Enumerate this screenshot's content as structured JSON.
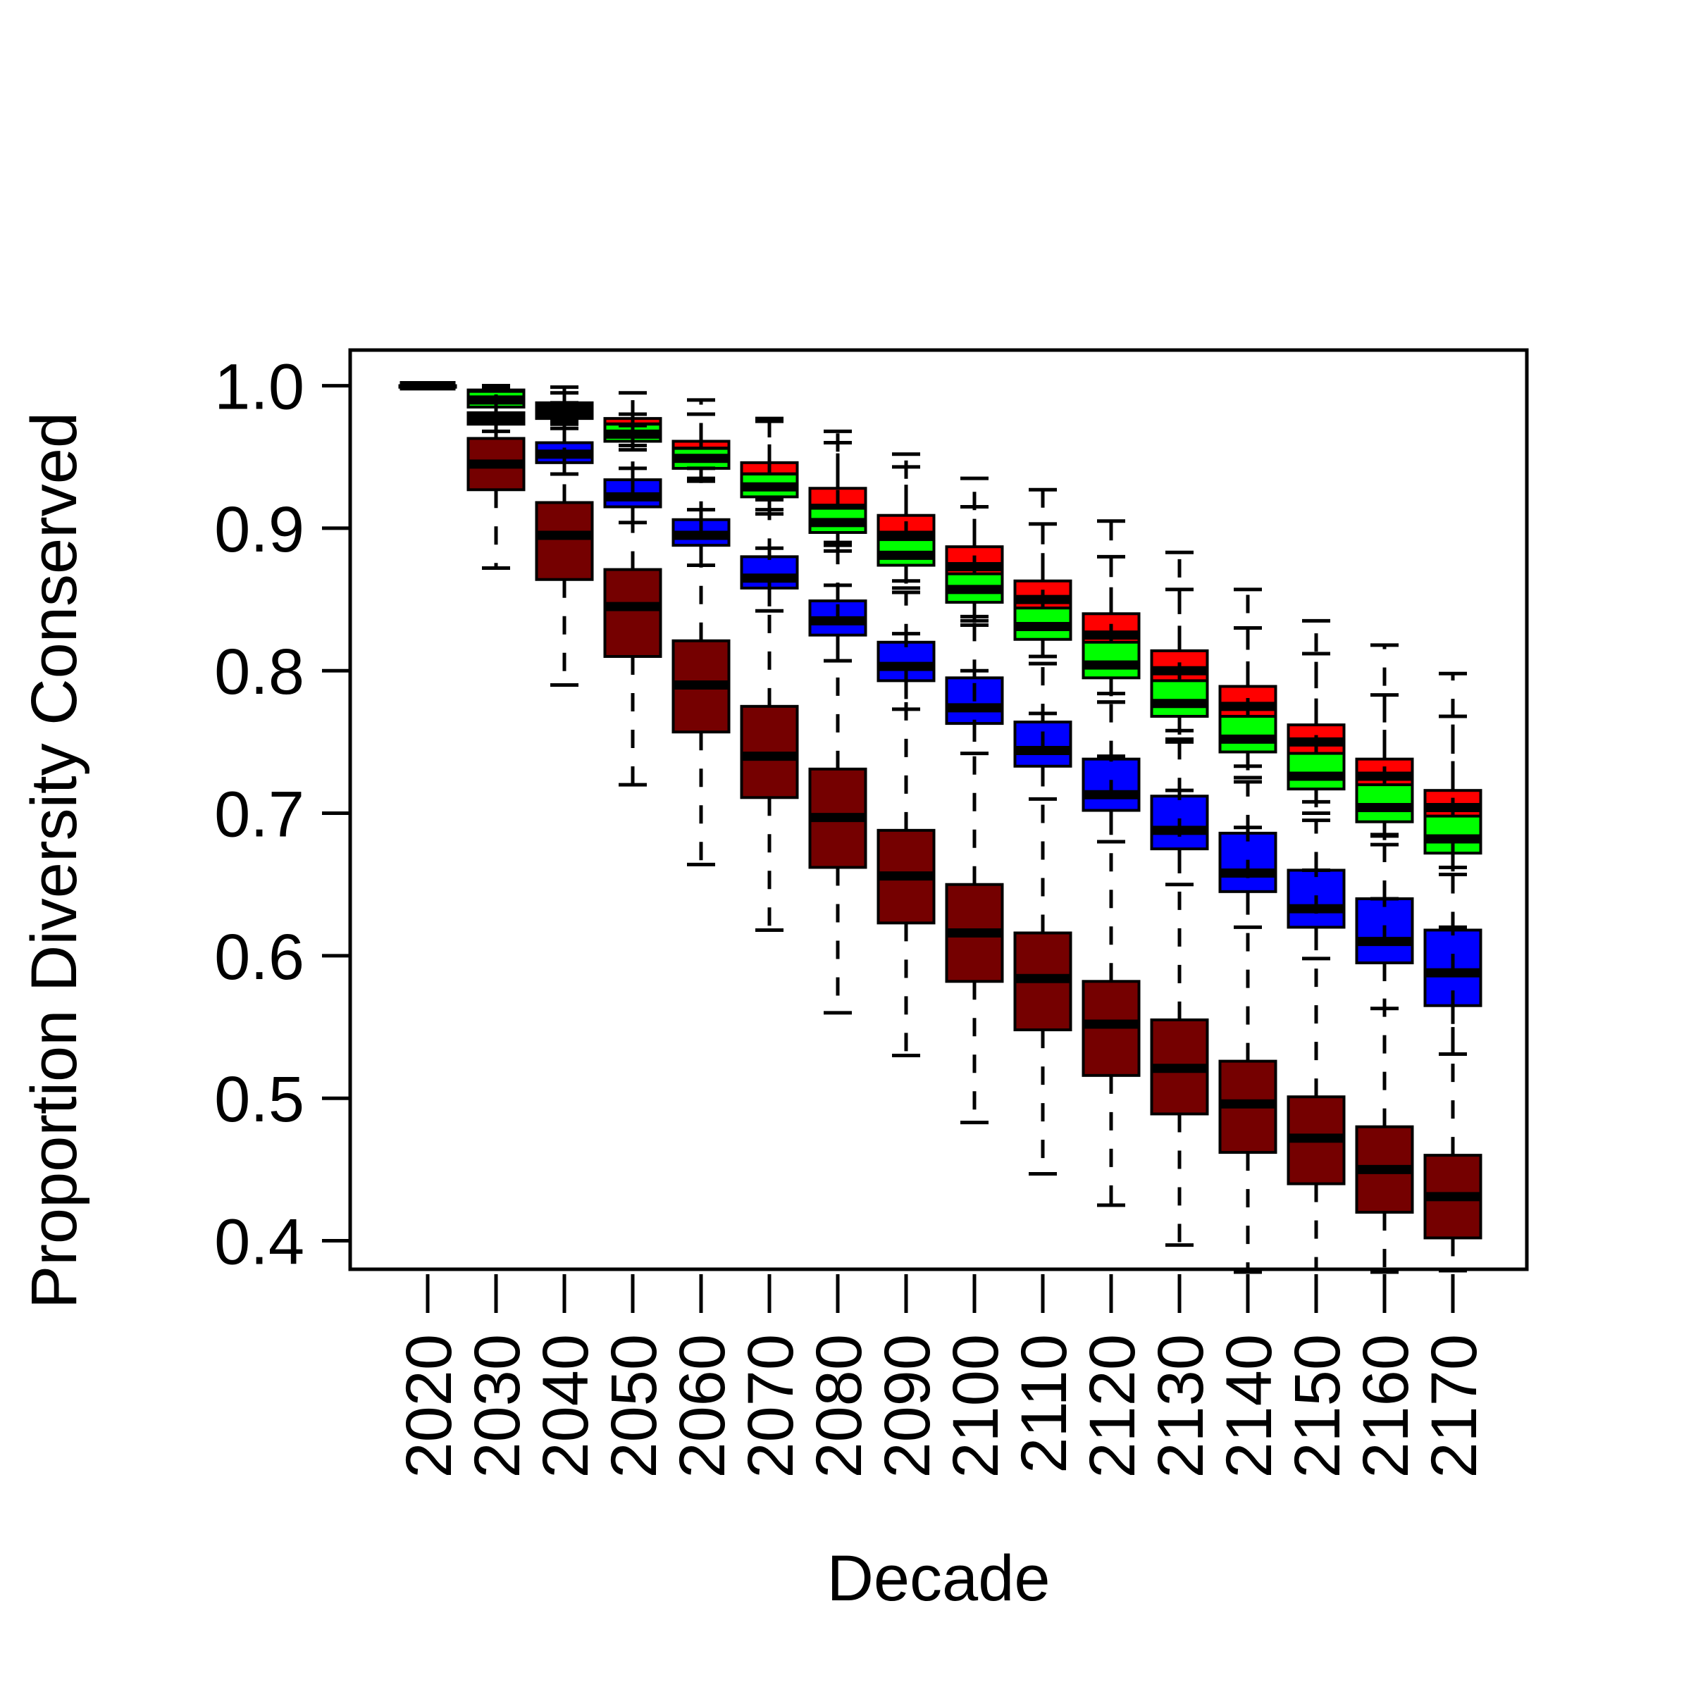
{
  "chart_data": {
    "type": "boxplot",
    "title": "",
    "xlabel": "Decade",
    "ylabel": "Proportion Diversity Conserved",
    "ylim": [
      0.38,
      1.025
    ],
    "yticks": [
      "0.4",
      "0.5",
      "0.6",
      "0.7",
      "0.8",
      "0.9",
      "1.0"
    ],
    "grid": false,
    "legend": "none",
    "categories": [
      "2020",
      "2030",
      "2040",
      "2050",
      "2060",
      "2070",
      "2080",
      "2090",
      "2100",
      "2110",
      "2120",
      "2130",
      "2140",
      "2150",
      "2160",
      "2170"
    ],
    "series": [
      {
        "color": "#ff0000",
        "boxes": [
          [
            1.0,
            1.0,
            1.0,
            1.0,
            1.0
          ],
          [
            0.975,
            0.987,
            0.993,
            0.997,
            1.0
          ],
          [
            0.975,
            0.979,
            0.984,
            0.988,
            0.999
          ],
          [
            0.958,
            0.966,
            0.971,
            0.977,
            0.995
          ],
          [
            0.935,
            0.947,
            0.954,
            0.961,
            0.99
          ],
          [
            0.913,
            0.929,
            0.936,
            0.946,
            0.977
          ],
          [
            0.888,
            0.905,
            0.914,
            0.928,
            0.968
          ],
          [
            0.863,
            0.884,
            0.895,
            0.909,
            0.952
          ],
          [
            0.838,
            0.86,
            0.873,
            0.887,
            0.935
          ],
          [
            0.81,
            0.836,
            0.85,
            0.863,
            0.927
          ],
          [
            0.784,
            0.81,
            0.825,
            0.84,
            0.905
          ],
          [
            0.758,
            0.786,
            0.8,
            0.814,
            0.883
          ],
          [
            0.733,
            0.76,
            0.775,
            0.789,
            0.857
          ],
          [
            0.708,
            0.736,
            0.75,
            0.762,
            0.835
          ],
          [
            0.684,
            0.711,
            0.726,
            0.738,
            0.818
          ],
          [
            0.662,
            0.69,
            0.704,
            0.716,
            0.798
          ]
        ]
      },
      {
        "color": "#00ff00",
        "boxes": [
          [
            1.0,
            1.0,
            1.0,
            1.0,
            1.0
          ],
          [
            0.974,
            0.985,
            0.99,
            0.996,
            1.0
          ],
          [
            0.973,
            0.977,
            0.981,
            0.985,
            0.995
          ],
          [
            0.955,
            0.961,
            0.966,
            0.973,
            0.98
          ],
          [
            0.933,
            0.942,
            0.949,
            0.956,
            0.98
          ],
          [
            0.91,
            0.922,
            0.929,
            0.938,
            0.975
          ],
          [
            0.884,
            0.897,
            0.904,
            0.914,
            0.96
          ],
          [
            0.858,
            0.874,
            0.881,
            0.892,
            0.943
          ],
          [
            0.832,
            0.848,
            0.857,
            0.868,
            0.915
          ],
          [
            0.805,
            0.822,
            0.831,
            0.844,
            0.903
          ],
          [
            0.778,
            0.795,
            0.804,
            0.82,
            0.88
          ],
          [
            0.752,
            0.768,
            0.777,
            0.793,
            0.857
          ],
          [
            0.725,
            0.743,
            0.752,
            0.768,
            0.83
          ],
          [
            0.7,
            0.717,
            0.726,
            0.742,
            0.812
          ],
          [
            0.678,
            0.694,
            0.704,
            0.72,
            0.783
          ],
          [
            0.657,
            0.672,
            0.682,
            0.698,
            0.768
          ]
        ]
      },
      {
        "color": "#0000ff",
        "boxes": [
          [
            1.0,
            1.0,
            1.0,
            1.0,
            1.0
          ],
          [
            0.968,
            0.973,
            0.977,
            0.981,
            0.998
          ],
          [
            0.938,
            0.946,
            0.952,
            0.96,
            0.988
          ],
          [
            0.904,
            0.915,
            0.922,
            0.934,
            0.972
          ],
          [
            0.874,
            0.888,
            0.895,
            0.906,
            0.942
          ],
          [
            0.842,
            0.858,
            0.865,
            0.88,
            0.92
          ],
          [
            0.807,
            0.825,
            0.835,
            0.849,
            0.89
          ],
          [
            0.773,
            0.793,
            0.803,
            0.82,
            0.855
          ],
          [
            0.742,
            0.763,
            0.774,
            0.795,
            0.835
          ],
          [
            0.71,
            0.733,
            0.744,
            0.764,
            0.805
          ],
          [
            0.68,
            0.702,
            0.713,
            0.738,
            0.778
          ],
          [
            0.65,
            0.675,
            0.688,
            0.712,
            0.75
          ],
          [
            0.62,
            0.645,
            0.658,
            0.686,
            0.722
          ],
          [
            0.598,
            0.62,
            0.633,
            0.66,
            0.695
          ],
          [
            0.563,
            0.595,
            0.61,
            0.64,
            0.685
          ],
          [
            0.531,
            0.565,
            0.588,
            0.618,
            0.68
          ]
        ]
      },
      {
        "color": "#750000",
        "boxes": [
          [
            1.0,
            1.0,
            1.0,
            1.0,
            1.0
          ],
          [
            0.872,
            0.927,
            0.945,
            0.963,
            0.99
          ],
          [
            0.79,
            0.864,
            0.895,
            0.918,
            0.97
          ],
          [
            0.72,
            0.81,
            0.845,
            0.871,
            0.942
          ],
          [
            0.664,
            0.757,
            0.79,
            0.821,
            0.913
          ],
          [
            0.618,
            0.711,
            0.74,
            0.775,
            0.886
          ],
          [
            0.56,
            0.662,
            0.697,
            0.731,
            0.86
          ],
          [
            0.53,
            0.623,
            0.656,
            0.688,
            0.826
          ],
          [
            0.483,
            0.582,
            0.616,
            0.65,
            0.8
          ],
          [
            0.447,
            0.548,
            0.584,
            0.616,
            0.77
          ],
          [
            0.425,
            0.516,
            0.552,
            0.582,
            0.74
          ],
          [
            0.397,
            0.489,
            0.521,
            0.555,
            0.716
          ],
          [
            0.378,
            0.462,
            0.496,
            0.526,
            0.69
          ],
          [
            0.38,
            0.44,
            0.472,
            0.501,
            0.66
          ],
          [
            0.378,
            0.42,
            0.45,
            0.48,
            0.64
          ],
          [
            0.379,
            0.402,
            0.431,
            0.46,
            0.62
          ]
        ]
      }
    ]
  }
}
